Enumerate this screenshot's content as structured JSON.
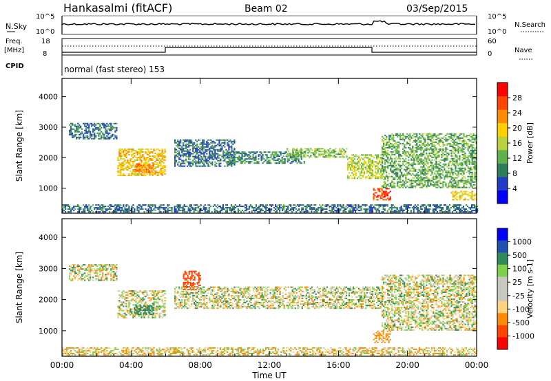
{
  "header": {
    "station": "Hankasalmi (fitACF)",
    "beam": "Beam 02",
    "date": "03/Sep/2015"
  },
  "noise_panel": {
    "left_label": "N.Sky",
    "left_ticks": [
      "10^5",
      "10^0"
    ],
    "right_label": "N.Search",
    "right_ticks": [
      "10^5",
      "10^0"
    ]
  },
  "freq_panel": {
    "left_label_1": "Freq.",
    "left_label_2": "[MHz]",
    "left_ticks": [
      "18",
      "8"
    ],
    "right_label": "Nave",
    "right_ticks": [
      "60",
      "0"
    ]
  },
  "cpid_panel": {
    "label": "CPID",
    "mode_text": "normal (fast stereo) 153"
  },
  "x_axis": {
    "label": "Time UT",
    "ticks": [
      "00:00",
      "04:00",
      "08:00",
      "12:00",
      "16:00",
      "20:00",
      "00:00"
    ]
  },
  "colors": {
    "power_scale": [
      "#0000ff",
      "#1e3cc8",
      "#2e7d5a",
      "#5fb24a",
      "#b7d23a",
      "#ffd000",
      "#ff8c00",
      "#ff4500",
      "#ff0000"
    ],
    "velocity_scale": [
      "#ff0000",
      "#ff4500",
      "#ff8c00",
      "#ffd27f",
      "#c8c8c0",
      "#c8c8c0",
      "#7fd04a",
      "#2e8b57",
      "#2050b0",
      "#0000ff"
    ]
  },
  "chart_data": [
    {
      "type": "heatmap",
      "title": "",
      "ylabel": "Slant Range [km]",
      "colorbar_label": "Power [dB]",
      "ylim": [
        180,
        4600
      ],
      "y_ticks": [
        "1000",
        "2000",
        "3000",
        "4000"
      ],
      "colorbar_ticks": [
        "4",
        "8",
        "12",
        "16",
        "20",
        "24",
        "28"
      ],
      "colorbar_range": [
        0,
        32
      ],
      "xlim_hours": [
        0,
        24
      ],
      "regions": [
        {
          "t0": 0.4,
          "t1": 3.2,
          "r0": 2600,
          "r1": 3100,
          "value": 8
        },
        {
          "t0": 3.2,
          "t1": 6.0,
          "r0": 1400,
          "r1": 2300,
          "value": 20
        },
        {
          "t0": 4.2,
          "t1": 5.3,
          "r0": 1500,
          "r1": 1800,
          "value": 24
        },
        {
          "t0": 6.5,
          "t1": 10.0,
          "r0": 1700,
          "r1": 2600,
          "value": 8
        },
        {
          "t0": 9.5,
          "t1": 14.0,
          "r0": 1800,
          "r1": 2200,
          "value": 10
        },
        {
          "t0": 13.0,
          "t1": 16.5,
          "r0": 2000,
          "r1": 2300,
          "value": 14
        },
        {
          "t0": 16.5,
          "t1": 18.5,
          "r0": 1300,
          "r1": 2100,
          "value": 16
        },
        {
          "t0": 18.0,
          "t1": 19.0,
          "r0": 600,
          "r1": 1000,
          "value": 28
        },
        {
          "t0": 18.5,
          "t1": 24.0,
          "r0": 1000,
          "r1": 2800,
          "value": 12
        },
        {
          "t0": 22.5,
          "t1": 24.0,
          "r0": 600,
          "r1": 900,
          "value": 20
        },
        {
          "t0": 0.0,
          "t1": 24.0,
          "r0": 200,
          "r1": 450,
          "value": 8
        }
      ]
    },
    {
      "type": "heatmap",
      "title": "",
      "ylabel": "Slant Range [km]",
      "colorbar_label": "Velocity [m s-1]",
      "ylim": [
        180,
        4600
      ],
      "y_ticks": [
        "1000",
        "2000",
        "3000",
        "4000"
      ],
      "colorbar_ticks": [
        "1000",
        "500",
        "100",
        "25",
        "-25",
        "-100",
        "-500",
        "-1000"
      ],
      "xlim_hours": [
        0,
        24
      ],
      "regions": [
        {
          "t0": 0.4,
          "t1": 3.2,
          "r0": 2600,
          "r1": 3100,
          "value": 0
        },
        {
          "t0": 3.2,
          "t1": 6.0,
          "r0": 1400,
          "r1": 2300,
          "value": 0
        },
        {
          "t0": 4.2,
          "t1": 5.3,
          "r0": 1500,
          "r1": 1800,
          "value": 300
        },
        {
          "t0": 7.0,
          "t1": 8.0,
          "r0": 2300,
          "r1": 2900,
          "value": -800
        },
        {
          "t0": 6.5,
          "t1": 18.5,
          "r0": 1700,
          "r1": 2400,
          "value": 0
        },
        {
          "t0": 18.0,
          "t1": 19.0,
          "r0": 600,
          "r1": 1000,
          "value": -300
        },
        {
          "t0": 18.5,
          "t1": 24.0,
          "r0": 1000,
          "r1": 2800,
          "value": 0
        },
        {
          "t0": 0.0,
          "t1": 24.0,
          "r0": 200,
          "r1": 450,
          "value": -60
        }
      ]
    }
  ]
}
